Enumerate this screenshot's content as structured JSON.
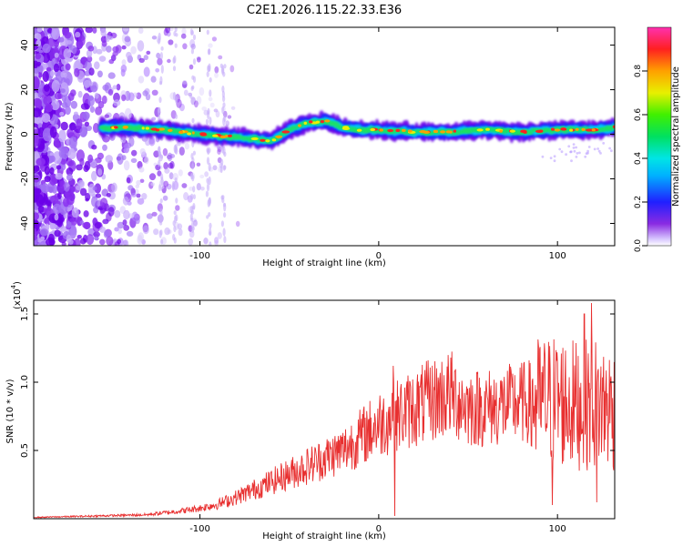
{
  "title": "C2E1.2026.115.22.33.E36",
  "chart_data": [
    {
      "type": "heatmap",
      "title": "C2E1.2026.115.22.33.E36",
      "xlabel": "Height of straight line (km)",
      "ylabel": "Frequency (Hz)",
      "xlim": [
        -193,
        132
      ],
      "ylim": [
        -50,
        48
      ],
      "xticks": [
        -100,
        0,
        100
      ],
      "yticks": [
        -40,
        -20,
        0,
        20,
        40
      ],
      "colorbar": {
        "label": "Normalized spectral amplitude",
        "range": [
          0,
          1
        ],
        "ticks": [
          "0.0",
          "0.2",
          "0.4",
          "0.6",
          "0.8"
        ]
      },
      "ridge": {
        "x": [
          -155,
          -140,
          -120,
          -100,
          -85,
          -70,
          -60,
          -50,
          -40,
          -30,
          -20,
          -10,
          0,
          20,
          40,
          60,
          80,
          100,
          120,
          132
        ],
        "y": [
          3,
          3,
          2,
          0,
          -1,
          -2,
          -3,
          2,
          5,
          6,
          3,
          2,
          2,
          1,
          1,
          2,
          1,
          2,
          2,
          3
        ]
      }
    },
    {
      "type": "line",
      "xlabel": "Height of straight line (km)",
      "ylabel": "SNR (10 * v/v)",
      "scale_label": "(x10",
      "scale_exp": "4",
      "xlim": [
        -193,
        132
      ],
      "ylim": [
        0,
        1.6
      ],
      "xticks": [
        -100,
        0,
        100
      ],
      "yticks": [
        "0.5",
        "1.0",
        "1.5"
      ],
      "color": "#e83030",
      "envelope": {
        "x": [
          -193,
          -160,
          -130,
          -110,
          -100,
          -90,
          -80,
          -70,
          -60,
          -50,
          -40,
          -30,
          -20,
          -10,
          0,
          10,
          20,
          30,
          40,
          50,
          60,
          70,
          80,
          90,
          100,
          110,
          120,
          132
        ],
        "y": [
          0.01,
          0.02,
          0.03,
          0.06,
          0.08,
          0.11,
          0.16,
          0.22,
          0.28,
          0.34,
          0.4,
          0.46,
          0.52,
          0.62,
          0.72,
          0.78,
          0.84,
          0.9,
          0.95,
          0.85,
          0.84,
          0.86,
          0.88,
          0.9,
          0.92,
          0.88,
          0.9,
          0.85
        ]
      },
      "spikes": [
        {
          "x": 8,
          "y": 1.12
        },
        {
          "x": 9,
          "y": 0.02
        },
        {
          "x": 97,
          "y": 0.1
        },
        {
          "x": 115,
          "y": 1.5
        },
        {
          "x": 119,
          "y": 1.58
        },
        {
          "x": 122,
          "y": 0.12
        }
      ]
    }
  ]
}
